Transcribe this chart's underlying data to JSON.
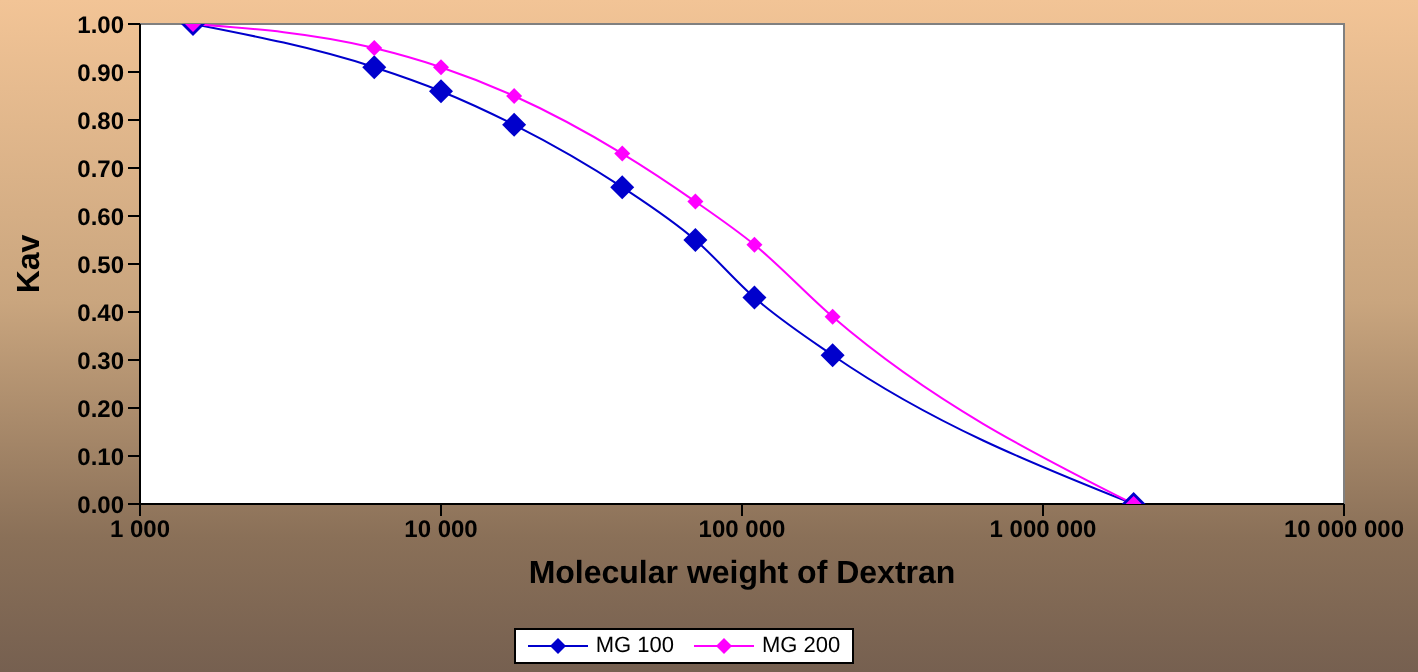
{
  "chart_data": {
    "type": "line",
    "xlabel": "Molecular weight of Dextran",
    "ylabel": "Kav",
    "log": "x",
    "x": [
      1500,
      6000,
      10000,
      17500,
      40000,
      70000,
      110000,
      200000,
      2000000
    ],
    "series": [
      {
        "name": "MG 100",
        "color": "#0000cc",
        "values": [
          1.0,
          0.91,
          0.86,
          0.79,
          0.66,
          0.55,
          0.43,
          0.31,
          0.0
        ]
      },
      {
        "name": "MG 200",
        "color": "#ff00ff",
        "values": [
          1.0,
          0.95,
          0.91,
          0.85,
          0.73,
          0.63,
          0.54,
          0.39,
          0.0
        ]
      }
    ],
    "xlim": [
      1000,
      10000000
    ],
    "xticks": [
      {
        "value": 1000,
        "label": "1 000"
      },
      {
        "value": 10000,
        "label": "10 000"
      },
      {
        "value": 100000,
        "label": "100 000"
      },
      {
        "value": 1000000,
        "label": "1 000 000"
      },
      {
        "value": 10000000,
        "label": "10 000 000"
      }
    ],
    "ylim": [
      0,
      1
    ],
    "yticks": [
      {
        "value": 0,
        "label": "0.00"
      },
      {
        "value": 0.1,
        "label": "0.10"
      },
      {
        "value": 0.2,
        "label": "0.20"
      },
      {
        "value": 0.3,
        "label": "0.30"
      },
      {
        "value": 0.4,
        "label": "0.40"
      },
      {
        "value": 0.5,
        "label": "0.50"
      },
      {
        "value": 0.6,
        "label": "0.60"
      },
      {
        "value": 0.7,
        "label": "0.70"
      },
      {
        "value": 0.8,
        "label": "0.80"
      },
      {
        "value": 0.9,
        "label": "0.90"
      },
      {
        "value": 1,
        "label": "1.00"
      }
    ],
    "legend": "bottom",
    "marker": "diamond",
    "line_style": "solid"
  }
}
